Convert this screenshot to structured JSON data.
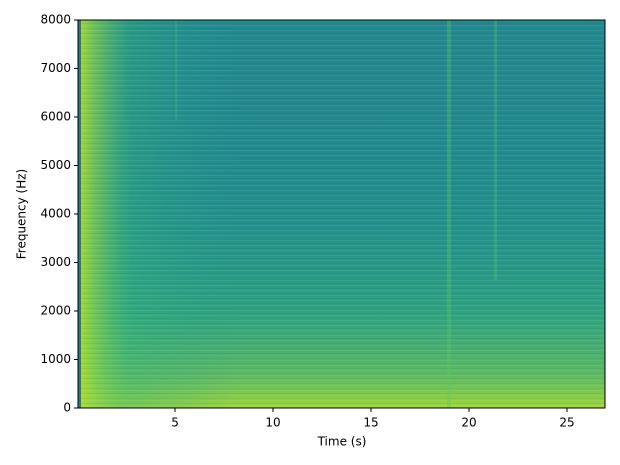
{
  "chart_data": {
    "type": "spectrogram",
    "xlabel": "Time (s)",
    "ylabel": "Frequency (Hz)",
    "xlim": [
      0.05,
      26.94
    ],
    "xticks": [
      5,
      10,
      15,
      20,
      25
    ],
    "ylim": [
      0,
      8000
    ],
    "yticks": [
      0,
      1000,
      2000,
      3000,
      4000,
      5000,
      6000,
      7000,
      8000
    ],
    "colormap": "viridis"
  }
}
